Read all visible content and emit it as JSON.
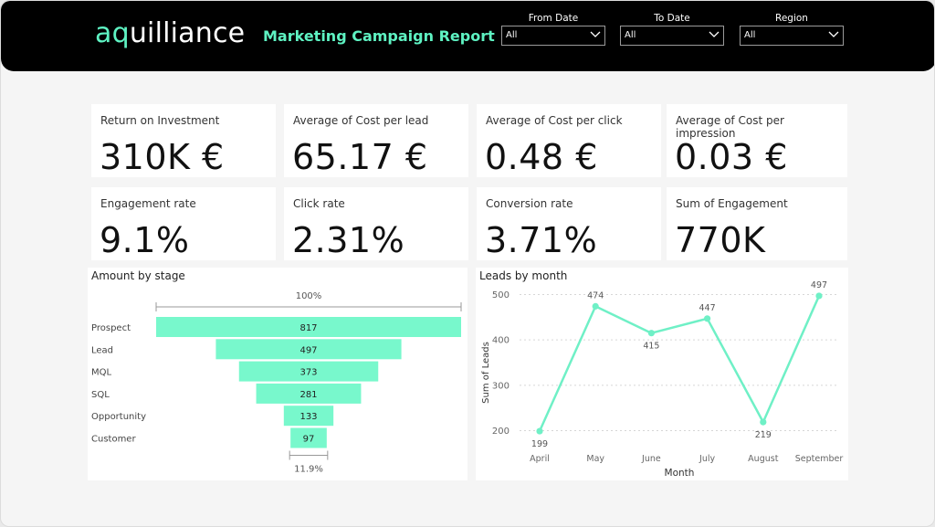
{
  "header": {
    "logo_prefix": "aq",
    "logo_rest": "uilliance",
    "title": "Marketing Campaign Report",
    "filters": [
      {
        "label": "From Date",
        "value": "All"
      },
      {
        "label": "To Date",
        "value": "All"
      },
      {
        "label": "Region",
        "value": "All"
      }
    ]
  },
  "kpis": [
    {
      "label": "Return on Investment",
      "value": "310K €"
    },
    {
      "label": "Average of Cost per lead",
      "value": "65.17 €"
    },
    {
      "label": "Average of Cost per click",
      "value": "0.48 €"
    },
    {
      "label": "Average of Cost per impression",
      "value": "0.03 €"
    },
    {
      "label": "Engagement rate",
      "value": "9.1%"
    },
    {
      "label": "Click rate",
      "value": "2.31%"
    },
    {
      "label": "Conversion rate",
      "value": "3.71%"
    },
    {
      "label": "Sum of Engagement",
      "value": "770K"
    }
  ],
  "colors": {
    "accent": "#78f8cc",
    "line": "#6ff0c6"
  },
  "chart_data": [
    {
      "type": "funnel",
      "title": "Amount by stage",
      "categories": [
        "Prospect",
        "Lead",
        "MQL",
        "SQL",
        "Opportunity",
        "Customer"
      ],
      "values": [
        817,
        497,
        373,
        281,
        133,
        97
      ],
      "top_label": "100%",
      "bottom_label": "11.9%"
    },
    {
      "type": "line",
      "title": "Leads by month",
      "categories": [
        "April",
        "May",
        "June",
        "July",
        "August",
        "September"
      ],
      "values": [
        199,
        474,
        415,
        447,
        219,
        497
      ],
      "xlabel": "Month",
      "ylabel": "Sum of Leads",
      "yticks": [
        200,
        300,
        400,
        500
      ],
      "ylim": [
        185,
        515
      ],
      "grid": true
    }
  ]
}
